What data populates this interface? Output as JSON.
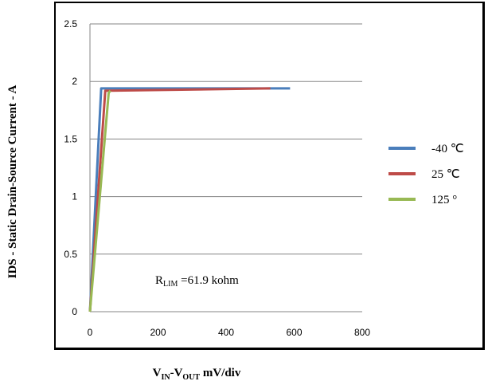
{
  "chart_data": {
    "type": "line",
    "xlabel_main": "V",
    "xlabel_sub1": "IN",
    "xlabel_mid": "-V",
    "xlabel_sub2": "OUT",
    "xlabel_tail": "  mV/div",
    "ylabel": "IDS - Static Drain-Source Current - A",
    "xlim": [
      0,
      800
    ],
    "ylim": [
      0,
      2.5
    ],
    "x_ticks": [
      "0",
      "200",
      "400",
      "600",
      "800"
    ],
    "y_ticks": [
      "0",
      "0.5",
      "1",
      "1.5",
      "2",
      "2.5"
    ],
    "grid": "horizontal",
    "legend_position": "right",
    "annotation": {
      "main": "R",
      "sub": "LIM",
      "tail": "  =61.9 kohm"
    },
    "series": [
      {
        "name": "-40 ℃",
        "color": "#4a7ebb",
        "x": [
          0,
          33,
          50,
          588
        ],
        "y": [
          0,
          1.94,
          1.94,
          1.94
        ]
      },
      {
        "name": "25 ℃",
        "color": "#be4b48",
        "x": [
          0,
          45,
          60,
          530
        ],
        "y": [
          0,
          1.92,
          1.92,
          1.94
        ]
      },
      {
        "name": "125 °",
        "color": "#98b954",
        "x": [
          0,
          55,
          60
        ],
        "y": [
          0,
          1.9,
          1.92
        ]
      }
    ]
  }
}
